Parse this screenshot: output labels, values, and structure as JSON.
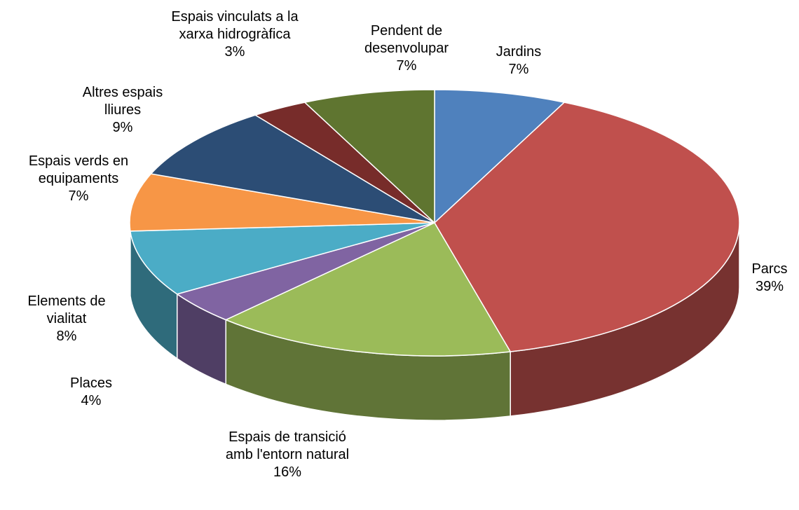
{
  "chart_data": {
    "type": "pie",
    "categories": [
      "Jardins",
      "Parcs",
      "Espais de transició amb l'entorn natural",
      "Places",
      "Elements de vialitat",
      "Espais verds en equipaments",
      "Altres espais lliures",
      "Espais vinculats a la xarxa hidrogràfica",
      "Pendent de desenvolupar"
    ],
    "values": [
      7,
      39,
      16,
      4,
      8,
      7,
      9,
      3,
      7
    ],
    "value_labels": [
      "7%",
      "39%",
      "16%",
      "4%",
      "8%",
      "7%",
      "9%",
      "3%",
      "7%"
    ],
    "colors": [
      "#4f81bd",
      "#c0504d",
      "#9bbb59",
      "#8064a2",
      "#4bacc6",
      "#f79646",
      "#2c4d75",
      "#772c2a",
      "#5f7530"
    ]
  }
}
